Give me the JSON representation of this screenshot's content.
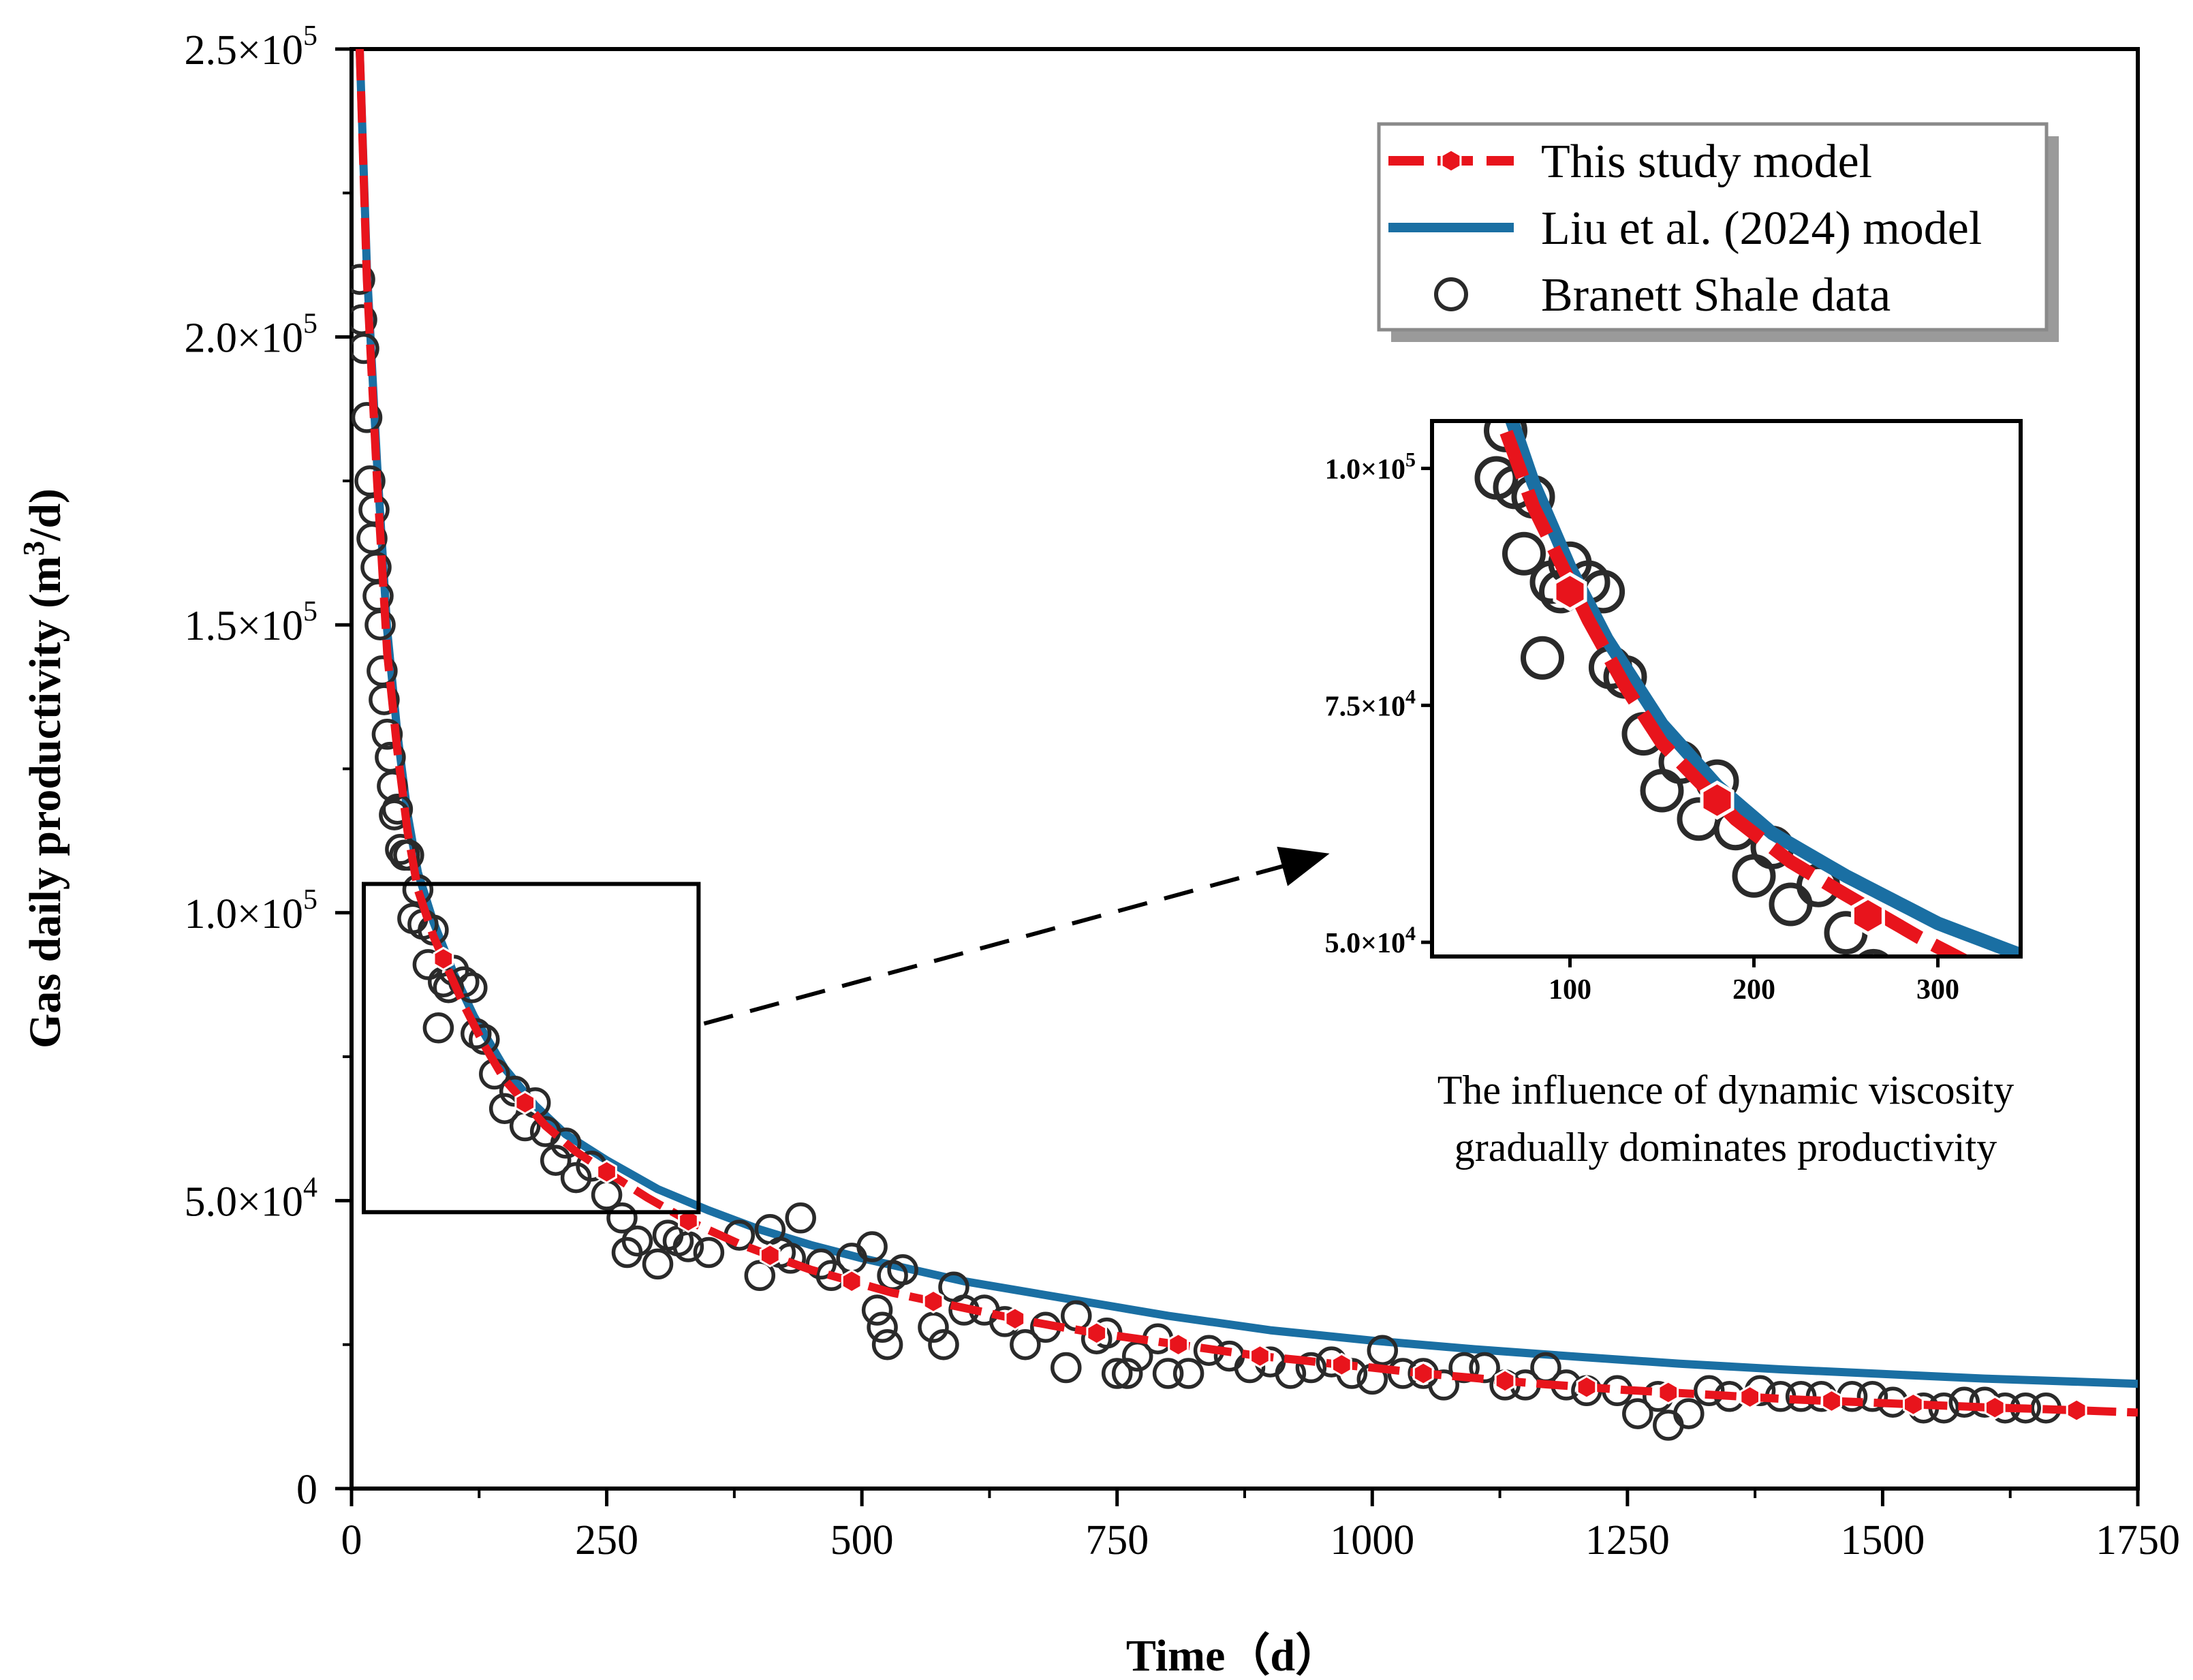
{
  "chart_data": {
    "type": "line",
    "title": "",
    "xlabel": "Time（d）",
    "ylabel_main": "Gas daily productivity (m",
    "ylabel_sup": "3",
    "ylabel_tail": "/d)",
    "xlim": [
      0,
      1750
    ],
    "ylim": [
      0,
      250000
    ],
    "x_ticks": [
      {
        "value": 0,
        "label": "0"
      },
      {
        "value": 250,
        "label": "250"
      },
      {
        "value": 500,
        "label": "500"
      },
      {
        "value": 750,
        "label": "750"
      },
      {
        "value": 1000,
        "label": "1000"
      },
      {
        "value": 1250,
        "label": "1250"
      },
      {
        "value": 1500,
        "label": "1500"
      },
      {
        "value": 1750,
        "label": "1750"
      }
    ],
    "y_ticks": [
      {
        "value": 0,
        "label": "0",
        "mant": "",
        "exp": ""
      },
      {
        "value": 50000,
        "label": "",
        "mant": "5.0×10",
        "exp": "4"
      },
      {
        "value": 100000,
        "label": "",
        "mant": "1.0×10",
        "exp": "5"
      },
      {
        "value": 150000,
        "label": "",
        "mant": "1.5×10",
        "exp": "5"
      },
      {
        "value": 200000,
        "label": "",
        "mant": "2.0×10",
        "exp": "5"
      },
      {
        "value": 250000,
        "label": "",
        "mant": "2.5×10",
        "exp": "5"
      }
    ],
    "series": [
      {
        "name": "This study  model",
        "color": "#e8141c",
        "style": "dashed-with-hexagon-markers",
        "x": [
          8,
          15,
          25,
          35,
          45,
          55,
          65,
          80,
          90,
          110,
          130,
          150,
          165,
          190,
          220,
          250,
          290,
          330,
          380,
          410,
          450,
          490,
          530,
          570,
          610,
          650,
          690,
          730,
          770,
          810,
          850,
          890,
          930,
          970,
          1000,
          1050,
          1100,
          1130,
          1170,
          1210,
          1250,
          1290,
          1330,
          1370,
          1410,
          1450,
          1480,
          1520,
          1560,
          1600,
          1640,
          1690,
          1750
        ],
        "y": [
          250000,
          210000,
          175000,
          145000,
          128000,
          114000,
          104000,
          96000,
          92000,
          84000,
          77000,
          71000,
          68000,
          63000,
          58500,
          55000,
          50500,
          46500,
          42500,
          40500,
          38000,
          36000,
          34000,
          32500,
          31000,
          29500,
          28200,
          27000,
          26000,
          25000,
          24000,
          23000,
          22300,
          21500,
          21000,
          20000,
          19200,
          18700,
          18100,
          17600,
          17100,
          16700,
          16300,
          15900,
          15500,
          15200,
          15000,
          14700,
          14400,
          14100,
          13900,
          13600,
          13200
        ]
      },
      {
        "name": "Liu et al. (2024) model",
        "color": "#1a6fa3",
        "style": "solid",
        "x": [
          8,
          15,
          25,
          35,
          45,
          55,
          65,
          80,
          100,
          120,
          150,
          180,
          210,
          250,
          300,
          350,
          400,
          450,
          500,
          600,
          700,
          800,
          900,
          1000,
          1100,
          1200,
          1300,
          1400,
          1500,
          1600,
          1750
        ],
        "y": [
          250000,
          212000,
          178000,
          149000,
          131000,
          117000,
          107000,
          98500,
          89500,
          82000,
          73000,
          66500,
          61500,
          57000,
          52000,
          48300,
          45000,
          42300,
          40000,
          36000,
          33000,
          30000,
          27500,
          25700,
          24200,
          22900,
          21700,
          20700,
          19900,
          19100,
          18200
        ]
      },
      {
        "name": "Branett Shale data",
        "color": "#2a2a2a",
        "style": "open-circles",
        "x": [
          8,
          10,
          12,
          15,
          18,
          20,
          22,
          24,
          26,
          28,
          30,
          32,
          35,
          38,
          40,
          42,
          45,
          48,
          52,
          56,
          60,
          65,
          70,
          75,
          80,
          85,
          90,
          95,
          100,
          110,
          118,
          122,
          130,
          140,
          150,
          160,
          170,
          180,
          190,
          200,
          210,
          220,
          235,
          250,
          265,
          270,
          280,
          300,
          310,
          320,
          330,
          350,
          380,
          400,
          410,
          420,
          430,
          440,
          460,
          470,
          490,
          510,
          515,
          520,
          525,
          530,
          540,
          570,
          580,
          590,
          600,
          620,
          640,
          660,
          680,
          700,
          710,
          730,
          740,
          750,
          760,
          770,
          790,
          800,
          820,
          840,
          860,
          880,
          900,
          920,
          940,
          960,
          980,
          1000,
          1010,
          1030,
          1050,
          1070,
          1090,
          1110,
          1130,
          1150,
          1170,
          1190,
          1210,
          1240,
          1260,
          1280,
          1290,
          1310,
          1330,
          1350,
          1380,
          1400,
          1420,
          1440,
          1470,
          1490,
          1510,
          1540,
          1560,
          1580,
          1600,
          1620,
          1640,
          1660
        ],
        "y": [
          210000,
          203000,
          198000,
          186000,
          175000,
          165000,
          170000,
          160000,
          155000,
          150000,
          142000,
          137000,
          131000,
          127000,
          122000,
          117000,
          118000,
          111000,
          110000,
          110000,
          99000,
          104000,
          98000,
          91000,
          97000,
          80000,
          88000,
          87000,
          90000,
          88000,
          87000,
          79000,
          78000,
          72000,
          66000,
          69000,
          63000,
          67000,
          62000,
          57000,
          60000,
          54000,
          56000,
          51000,
          47000,
          41000,
          43000,
          39000,
          44000,
          43000,
          42000,
          41000,
          44000,
          37000,
          45000,
          41000,
          40000,
          47000,
          39000,
          37000,
          40000,
          42000,
          31000,
          28000,
          25000,
          37000,
          38000,
          28000,
          25000,
          35000,
          31000,
          31000,
          29000,
          25000,
          28000,
          21000,
          30000,
          26000,
          27000,
          20000,
          20000,
          23000,
          26000,
          20000,
          20000,
          24000,
          23000,
          21000,
          22000,
          20000,
          21000,
          22000,
          20000,
          19000,
          24000,
          20000,
          20000,
          18000,
          21000,
          21000,
          18000,
          18000,
          21000,
          18000,
          17000,
          17000,
          13000,
          16000,
          11000,
          13000,
          17000,
          16000,
          17000,
          16000,
          16000,
          16000,
          16000,
          16000,
          15000,
          14000,
          14000,
          15000,
          15000,
          14000,
          14000,
          14000
        ]
      }
    ],
    "legend": {
      "position": "top-right",
      "entries": [
        "This study  model",
        "Liu et al. (2024) model",
        "Branett Shale data"
      ]
    },
    "zoom_box": {
      "x_range": [
        12,
        340
      ],
      "y_range": [
        48000,
        105000
      ]
    },
    "inset": {
      "xlim": [
        25,
        345
      ],
      "ylim": [
        48500,
        105000
      ],
      "x_ticks": [
        {
          "value": 100,
          "label": "100"
        },
        {
          "value": 200,
          "label": "200"
        },
        {
          "value": 300,
          "label": "300"
        }
      ],
      "y_ticks": [
        {
          "value": 50000,
          "mant": "5.0×10",
          "exp": "4"
        },
        {
          "value": 75000,
          "mant": "7.5×10",
          "exp": "4"
        },
        {
          "value": 100000,
          "mant": "1.0×10",
          "exp": "5"
        }
      ],
      "markers": [
        {
          "x": 100,
          "y": 87000
        },
        {
          "x": 180,
          "y": 65000
        },
        {
          "x": 262,
          "y": 52800
        }
      ]
    },
    "annotation": {
      "line1": "The influence of dynamic viscosity",
      "line2": "gradually dominates productivity"
    }
  }
}
